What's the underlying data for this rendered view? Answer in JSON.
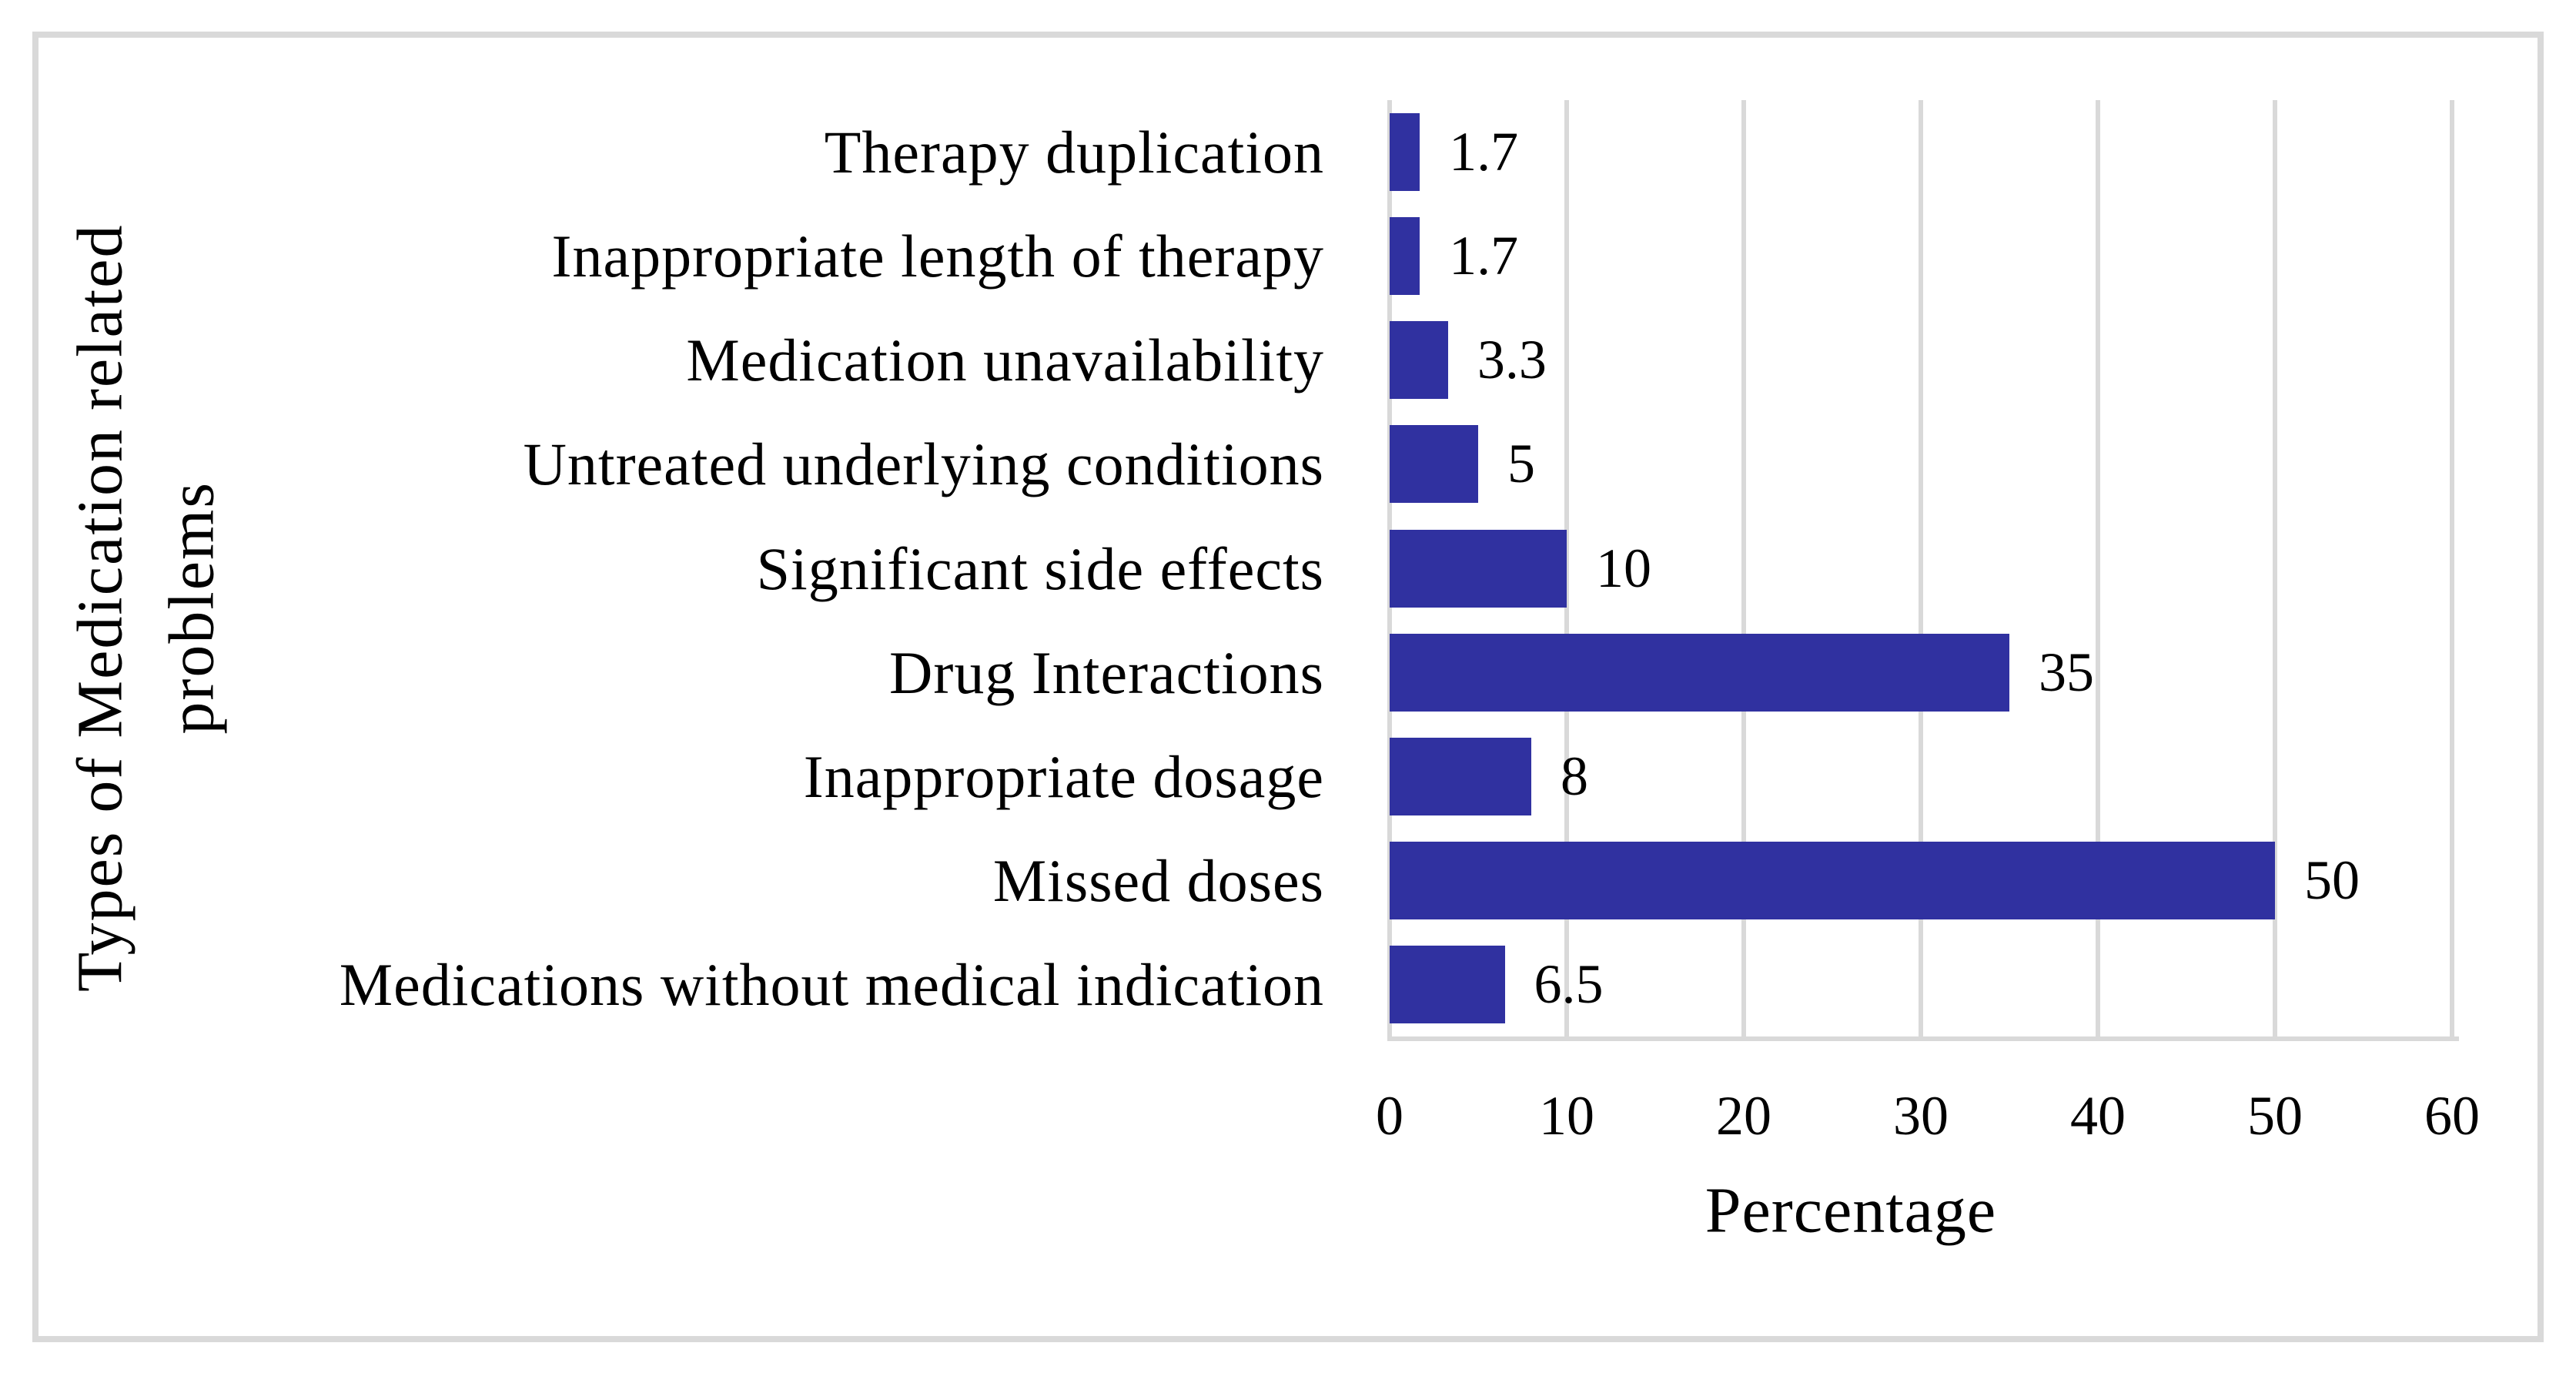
{
  "figure": {
    "background_color": "#ffffff",
    "border_color": "#D9D9D9",
    "text_color": "#000000"
  },
  "chart_data": {
    "type": "bar",
    "orientation": "horizontal",
    "categories": [
      "Therapy duplication",
      "Inappropriate length of therapy",
      "Medication unavailability",
      "Untreated underlying conditions",
      "Significant side effects",
      "Drug Interactions",
      "Inappropriate dosage",
      "Missed doses",
      "Medications without medical indication"
    ],
    "values": [
      1.7,
      1.7,
      3.3,
      5,
      10,
      35,
      8,
      50,
      6.5
    ],
    "data_labels": [
      "1.7",
      "1.7",
      "3.3",
      "5",
      "10",
      "35",
      "8",
      "50",
      "6.5"
    ],
    "xlabel": "Percentage",
    "ylabel_line1": "Types of Medication related",
    "ylabel_line2": "problems",
    "xlim": [
      0,
      60
    ],
    "xtick_values": [
      0,
      10,
      20,
      30,
      40,
      50,
      60
    ],
    "xtick_labels": [
      "0",
      "10",
      "20",
      "30",
      "40",
      "50",
      "60"
    ],
    "bar_color": "#3031A0",
    "gridline_color": "#D9D9D9",
    "grid": "vertical-gridlines-on",
    "legend": "none",
    "title": ""
  }
}
